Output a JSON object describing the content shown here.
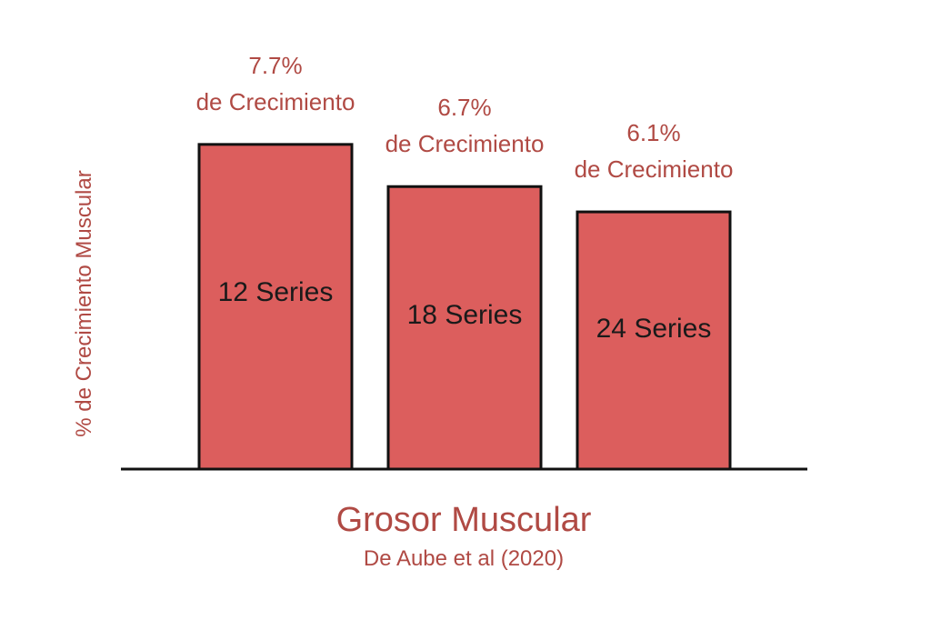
{
  "colors": {
    "bar_fill": "#dc5e5d",
    "accent_text": "#b04a44",
    "axis": "#111111",
    "label_text": "#1a1a1a"
  },
  "chart_data": {
    "type": "bar",
    "categories": [
      "12 Series",
      "18 Series",
      "24 Series"
    ],
    "values": [
      7.7,
      6.7,
      6.1
    ],
    "value_labels": [
      {
        "value": "7.7%",
        "suffix": "de Crecimiento"
      },
      {
        "value": "6.7%",
        "suffix": "de Crecimiento"
      },
      {
        "value": "6.1%",
        "suffix": "de Crecimiento"
      }
    ],
    "title": "Grosor Muscular",
    "subtitle": "De Aube et al (2020)",
    "xlabel": "",
    "ylabel": "% de Crecimiento Muscular",
    "ylim": [
      0,
      9.4
    ],
    "grid": false,
    "legend": "none"
  }
}
